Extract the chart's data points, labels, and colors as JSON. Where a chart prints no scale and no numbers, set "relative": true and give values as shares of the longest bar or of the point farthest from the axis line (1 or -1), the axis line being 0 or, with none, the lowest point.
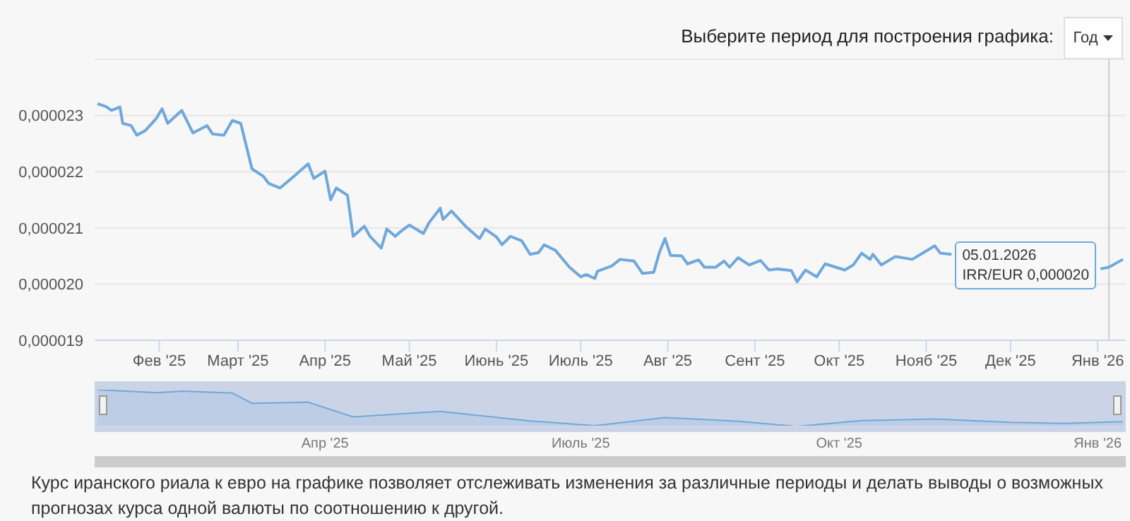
{
  "chart_data": [
    {
      "type": "line",
      "color": "#6fa8dc",
      "grid": "y",
      "line_style": "solid",
      "x": [
        "2025-01-10",
        "2025-01-13",
        "2025-01-15",
        "2025-01-18",
        "2025-01-19",
        "2025-01-22",
        "2025-01-24",
        "2025-01-27",
        "2025-01-31",
        "2025-02-02",
        "2025-02-04",
        "2025-02-09",
        "2025-02-13",
        "2025-02-18",
        "2025-02-20",
        "2025-02-24",
        "2025-02-27",
        "2025-03-02",
        "2025-03-06",
        "2025-03-10",
        "2025-03-12",
        "2025-03-16",
        "2025-03-21",
        "2025-03-26",
        "2025-03-28",
        "2025-04-01",
        "2025-04-03",
        "2025-04-05",
        "2025-04-09",
        "2025-04-11",
        "2025-04-15",
        "2025-04-17",
        "2025-04-21",
        "2025-04-23",
        "2025-04-26",
        "2025-04-28",
        "2025-05-01",
        "2025-05-06",
        "2025-05-08",
        "2025-05-12",
        "2025-05-13",
        "2025-05-16",
        "2025-05-21",
        "2025-05-26",
        "2025-05-28",
        "2025-06-01",
        "2025-06-03",
        "2025-06-06",
        "2025-06-10",
        "2025-06-13",
        "2025-06-16",
        "2025-06-18",
        "2025-06-22",
        "2025-06-27",
        "2025-07-01",
        "2025-07-03",
        "2025-07-06",
        "2025-07-07",
        "2025-07-12",
        "2025-07-15",
        "2025-07-20",
        "2025-07-23",
        "2025-07-27",
        "2025-07-29",
        "2025-07-31",
        "2025-08-02",
        "2025-08-06",
        "2025-08-08",
        "2025-08-12",
        "2025-08-14",
        "2025-08-18",
        "2025-08-21",
        "2025-08-23",
        "2025-08-26",
        "2025-08-30",
        "2025-09-03",
        "2025-09-06",
        "2025-09-09",
        "2025-09-14",
        "2025-09-16",
        "2025-09-19",
        "2025-09-23",
        "2025-09-26",
        "2025-10-03",
        "2025-10-06",
        "2025-10-09",
        "2025-10-12",
        "2025-10-13",
        "2025-10-16",
        "2025-10-21",
        "2025-10-27",
        "2025-11-01",
        "2025-11-04",
        "2025-11-06",
        "2025-11-10",
        "2025-11-13",
        "2025-12-10",
        "2026-01-02",
        "2026-01-05",
        "2026-01-10"
      ],
      "values": [
        2.321e-05,
        2.316e-05,
        2.309e-05,
        2.315e-05,
        2.286e-05,
        2.282e-05,
        2.265e-05,
        2.273e-05,
        2.295e-05,
        2.312e-05,
        2.286e-05,
        2.309e-05,
        2.269e-05,
        2.282e-05,
        2.267e-05,
        2.265e-05,
        2.291e-05,
        2.286e-05,
        2.205e-05,
        2.192e-05,
        2.179e-05,
        2.171e-05,
        2.192e-05,
        2.214e-05,
        2.188e-05,
        2.201e-05,
        2.15e-05,
        2.171e-05,
        2.158e-05,
        2.085e-05,
        2.103e-05,
        2.085e-05,
        2.064e-05,
        2.098e-05,
        2.085e-05,
        2.094e-05,
        2.105e-05,
        2.09e-05,
        2.109e-05,
        2.135e-05,
        2.115e-05,
        2.13e-05,
        2.103e-05,
        2.081e-05,
        2.098e-05,
        2.084e-05,
        2.07e-05,
        2.085e-05,
        2.077e-05,
        2.053e-05,
        2.056e-05,
        2.07e-05,
        2.06e-05,
        2.03e-05,
        2.013e-05,
        2.017e-05,
        2.01e-05,
        2.023e-05,
        2.032e-05,
        2.044e-05,
        2.041e-05,
        2.019e-05,
        2.021e-05,
        2.056e-05,
        2.081e-05,
        2.051e-05,
        2.05e-05,
        2.036e-05,
        2.043e-05,
        2.03e-05,
        2.03e-05,
        2.041e-05,
        2.03e-05,
        2.047e-05,
        2.034e-05,
        2.042e-05,
        2.025e-05,
        2.027e-05,
        2.024e-05,
        2.004e-05,
        2.025e-05,
        2.013e-05,
        2.036e-05,
        2.025e-05,
        2.034e-05,
        2.055e-05,
        2.044e-05,
        2.053e-05,
        2.034e-05,
        2.049e-05,
        2.044e-05,
        2.059e-05,
        2.068e-05,
        2.055e-05,
        2.053e-05,
        null,
        null,
        2.027e-05,
        2.03e-05,
        2.044e-05
      ],
      "xlim": [
        "2025-01-09",
        "2026-01-11"
      ],
      "xticks": [
        {
          "value": "2025-02-01",
          "label": "Фев '25"
        },
        {
          "value": "2025-03-01",
          "label": "Март '25"
        },
        {
          "value": "2025-04-01",
          "label": "Апр '25"
        },
        {
          "value": "2025-05-01",
          "label": "Май '25"
        },
        {
          "value": "2025-06-01",
          "label": "Июнь '25"
        },
        {
          "value": "2025-07-01",
          "label": "Июль '25"
        },
        {
          "value": "2025-08-01",
          "label": "Авг '25"
        },
        {
          "value": "2025-09-01",
          "label": "Сент '25"
        },
        {
          "value": "2025-10-01",
          "label": "Окт '25"
        },
        {
          "value": "2025-11-01",
          "label": "Нояб '25"
        },
        {
          "value": "2025-12-01",
          "label": "Дек '25"
        },
        {
          "value": "2026-01-01",
          "label": "Янв '26"
        }
      ],
      "ylim": [
        1.9e-05,
        2.4e-05
      ],
      "yticks": [
        {
          "value": 1.9e-05,
          "label": "0,000019"
        },
        {
          "value": 2e-05,
          "label": "0,000020"
        },
        {
          "value": 2.1e-05,
          "label": "0,000021"
        },
        {
          "value": 2.2e-05,
          "label": "0,000022"
        },
        {
          "value": 2.3e-05,
          "label": "0,000023"
        }
      ],
      "ref_lines": [
        {
          "axis": "x",
          "value": "2026-01-05",
          "color": "#cccccc"
        }
      ],
      "annotations": [
        "Выберите период для построения графика:",
        "Год",
        "Курс иранского риала к евро на графике позволяет отслеживать изменения за различные периоды и делать выводы о возможных прогнозах курса одной валюты по соотношению к другой.",
        {
          "text": "05.01.2026\nIRR/EUR 0,000020",
          "x": "2026-01-05",
          "y": 2.03e-05
        }
      ]
    },
    {
      "type": "area",
      "color": "#6fa8dc",
      "tick_labels": "x",
      "x": [
        "2025-01-10",
        "2025-01-31",
        "2025-02-09",
        "2025-02-27",
        "2025-03-06",
        "2025-03-26",
        "2025-04-11",
        "2025-05-12",
        "2025-06-13",
        "2025-07-06",
        "2025-07-31",
        "2025-08-26",
        "2025-09-16",
        "2025-10-09",
        "2025-11-04",
        "2025-12-01",
        "2025-12-20",
        "2026-01-10"
      ],
      "relative": true,
      "values": [
        1,
        0.92,
        0.96,
        0.91,
        0.63,
        0.66,
        0.26,
        0.41,
        0.15,
        0.02,
        0.24,
        0.14,
        0,
        0.16,
        0.2,
        0.11,
        0.08,
        0.13
      ],
      "xlim": [
        "2025-01-09",
        "2026-01-11"
      ],
      "xticks": [
        {
          "value": "2025-04-01",
          "label": "Апр '25"
        },
        {
          "value": "2025-07-01",
          "label": "Июль '25"
        },
        {
          "value": "2025-10-01",
          "label": "Окт '25"
        },
        {
          "value": "2026-01-01",
          "label": "Янв '26"
        }
      ]
    }
  ]
}
